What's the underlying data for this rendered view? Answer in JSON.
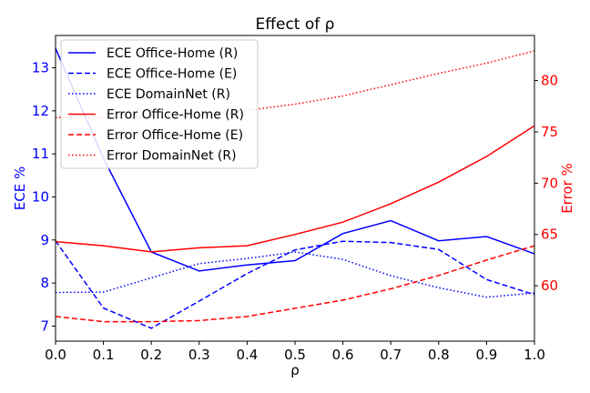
{
  "chart_data": {
    "type": "line",
    "title": "Effect of ρ",
    "xlabel": "ρ",
    "ylabel_left": "ECE %",
    "ylabel_right": "Error %",
    "xlim": [
      0.0,
      1.0
    ],
    "ylim_left": [
      6.65,
      13.75
    ],
    "ylim_right": [
      54.6,
      84.4
    ],
    "x": [
      0.0,
      0.1,
      0.2,
      0.3,
      0.4,
      0.5,
      0.6,
      0.7,
      0.8,
      0.9,
      1.0
    ],
    "xticks": [
      "0.0",
      "0.1",
      "0.2",
      "0.3",
      "0.4",
      "0.5",
      "0.6",
      "0.7",
      "0.8",
      "0.9",
      "1.0"
    ],
    "yticks_left": [
      7,
      8,
      9,
      10,
      11,
      12,
      13
    ],
    "yticks_right": [
      60,
      65,
      70,
      75,
      80
    ],
    "grid": false,
    "legend_position": "top-left",
    "series": [
      {
        "name": "ECE Office-Home (R)",
        "axis": "left",
        "color": "#0000ff",
        "style": "solid",
        "values": [
          13.45,
          10.9,
          8.72,
          8.28,
          8.42,
          8.52,
          9.15,
          9.45,
          8.98,
          9.08,
          8.68
        ]
      },
      {
        "name": "ECE Office-Home (E)",
        "axis": "left",
        "color": "#0000ff",
        "style": "dashed",
        "values": [
          8.98,
          7.42,
          6.95,
          7.58,
          8.22,
          8.77,
          8.97,
          8.94,
          8.78,
          8.08,
          7.73
        ]
      },
      {
        "name": "ECE DomainNet (R)",
        "axis": "left",
        "color": "#0000ff",
        "style": "dotted",
        "values": [
          7.78,
          7.79,
          8.12,
          8.45,
          8.57,
          8.72,
          8.55,
          8.17,
          7.89,
          7.67,
          7.77
        ]
      },
      {
        "name": "Error Office-Home (R)",
        "axis": "right",
        "color": "#ff0000",
        "style": "solid",
        "values": [
          64.3,
          63.9,
          63.3,
          63.7,
          63.9,
          65.0,
          66.2,
          68.0,
          70.1,
          72.6,
          75.6
        ]
      },
      {
        "name": "Error Office-Home (E)",
        "axis": "right",
        "color": "#ff0000",
        "style": "dashed",
        "values": [
          57.0,
          56.5,
          56.5,
          56.6,
          57.0,
          57.8,
          58.6,
          59.7,
          61.0,
          62.5,
          63.9
        ]
      },
      {
        "name": "Error DomainNet (R)",
        "axis": "right",
        "color": "#ff0000",
        "style": "dotted",
        "values": [
          76.4,
          76.4,
          76.4,
          76.6,
          77.1,
          77.7,
          78.5,
          79.6,
          80.7,
          81.7,
          82.9
        ]
      }
    ]
  }
}
